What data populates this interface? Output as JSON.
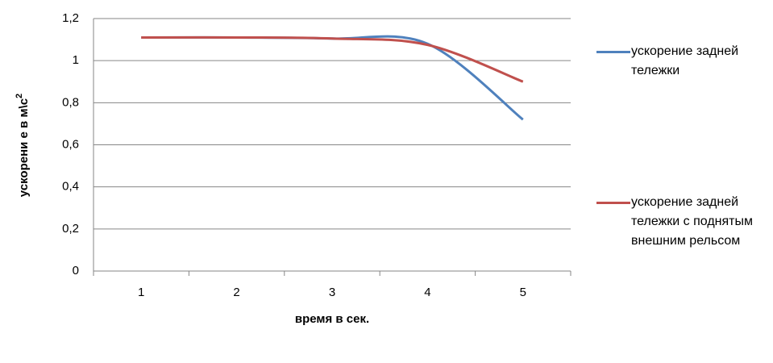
{
  "chart_data": {
    "type": "line",
    "y_label": "ускорени е в м\\с",
    "y_label_superscript": "2",
    "x_label": "время в сек.",
    "categories": [
      "1",
      "2",
      "3",
      "4",
      "5"
    ],
    "series": [
      {
        "name": "ускорение задней тележки",
        "color": "#4f81bd",
        "values": [
          1.11,
          1.11,
          1.105,
          1.08,
          0.72
        ]
      },
      {
        "name": "ускорение задней тележки с поднятым внешним рельсом",
        "color": "#c0504d",
        "values": [
          1.11,
          1.11,
          1.105,
          1.075,
          0.9
        ]
      }
    ],
    "ylim": [
      0,
      1.2
    ],
    "yticks": [
      0,
      {
        "value": 0.2,
        "label": "0,2"
      },
      {
        "value": 0.4,
        "label": "0,4"
      },
      {
        "value": 0.6,
        "label": "0,6"
      },
      {
        "value": 0.8,
        "label": "0,8"
      },
      1,
      {
        "value": 1.2,
        "label": "1,2"
      }
    ],
    "grid": true,
    "smooth": true
  }
}
